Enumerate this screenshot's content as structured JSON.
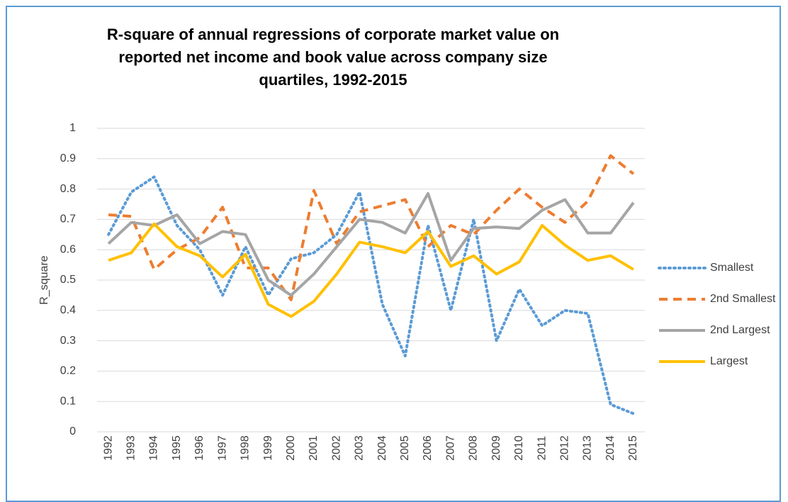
{
  "chart_data": {
    "type": "line",
    "title": "R-square of annual regressions of corporate market value on reported net income and book value across company size quartiles, 1992-2015",
    "y_label": "R_square",
    "categories": [
      "1992",
      "1993",
      "1994",
      "1995",
      "1996",
      "1997",
      "1998",
      "1999",
      "2000",
      "2001",
      "2002",
      "2003",
      "2004",
      "2005",
      "2006",
      "2007",
      "2008",
      "2009",
      "2010",
      "2011",
      "2012",
      "2013",
      "2014",
      "2015"
    ],
    "series": [
      {
        "name": "Smallest",
        "color": "#5b9bd5",
        "style": "dotted",
        "values": [
          0.65,
          0.79,
          0.84,
          0.68,
          0.6,
          0.45,
          0.61,
          0.45,
          0.57,
          0.59,
          0.65,
          0.79,
          0.42,
          0.25,
          0.68,
          0.4,
          0.7,
          0.3,
          0.47,
          0.35,
          0.4,
          0.39,
          0.09,
          0.06
        ]
      },
      {
        "name": "2nd Smallest",
        "color": "#ed7d31",
        "style": "dashed",
        "values": [
          0.715,
          0.71,
          0.535,
          0.6,
          0.64,
          0.74,
          0.54,
          0.54,
          0.435,
          0.795,
          0.62,
          0.725,
          0.745,
          0.765,
          0.61,
          0.68,
          0.65,
          0.73,
          0.8,
          0.74,
          0.69,
          0.76,
          0.91,
          0.85
        ]
      },
      {
        "name": "2nd Largest",
        "color": "#a5a5a5",
        "style": "solid",
        "values": [
          0.62,
          0.69,
          0.68,
          0.715,
          0.62,
          0.66,
          0.65,
          0.5,
          0.45,
          0.52,
          0.61,
          0.7,
          0.69,
          0.655,
          0.785,
          0.565,
          0.67,
          0.675,
          0.67,
          0.73,
          0.765,
          0.655,
          0.655,
          0.755
        ]
      },
      {
        "name": "Largest",
        "color": "#ffc000",
        "style": "solid",
        "values": [
          0.565,
          0.59,
          0.685,
          0.61,
          0.58,
          0.51,
          0.585,
          0.42,
          0.38,
          0.43,
          0.52,
          0.625,
          0.61,
          0.59,
          0.66,
          0.545,
          0.58,
          0.52,
          0.56,
          0.68,
          0.615,
          0.565,
          0.58,
          0.535
        ]
      }
    ],
    "ylim": [
      0,
      1
    ],
    "yticks": [
      0,
      0.1,
      0.2,
      0.3,
      0.4,
      0.5,
      0.6,
      0.7,
      0.8,
      0.9,
      1
    ],
    "grid": true,
    "legend": "right"
  }
}
